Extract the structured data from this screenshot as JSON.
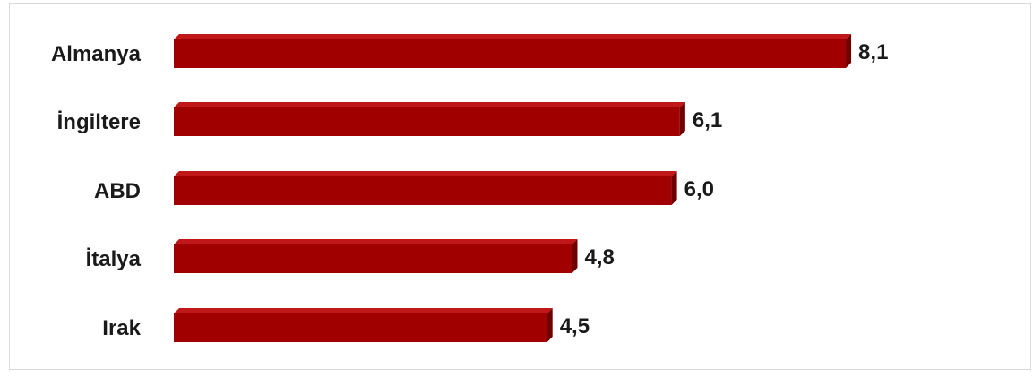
{
  "chart_data": {
    "type": "bar",
    "orientation": "horizontal",
    "categories": [
      "Almanya",
      "İngiltere",
      "ABD",
      "İtalya",
      "Irak"
    ],
    "values": [
      8.1,
      6.1,
      6.0,
      4.8,
      4.5
    ],
    "value_labels": [
      "8,1",
      "6,1",
      "6,0",
      "4,8",
      "4,5"
    ],
    "xlim": [
      0,
      9
    ],
    "grid": false,
    "legend": "none",
    "colors": {
      "bar_front": "#a00000",
      "bar_top": "#c01818",
      "bar_side": "#6e0000"
    }
  }
}
